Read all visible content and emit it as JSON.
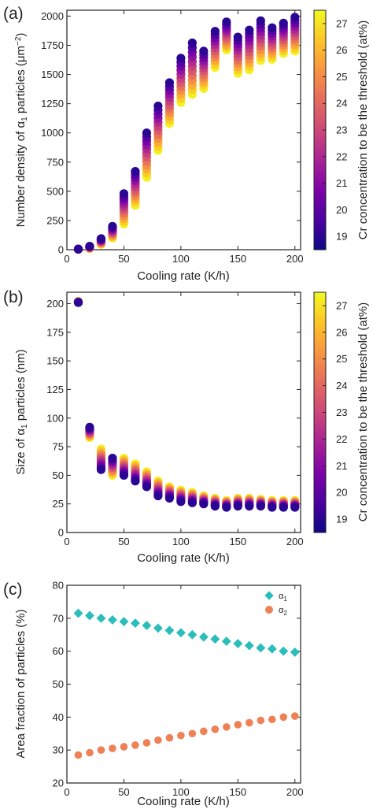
{
  "panels": [
    {
      "id": "a",
      "label": "(a)"
    },
    {
      "id": "b",
      "label": "(b)"
    },
    {
      "id": "c",
      "label": "(c)"
    }
  ],
  "colorbar": {
    "label": "Cr concentration to be the threshold (at%)",
    "ticks": [
      19,
      20,
      21,
      22,
      23,
      24,
      25,
      26,
      27
    ],
    "range": [
      18.5,
      27.5
    ],
    "colormap": "plasma"
  },
  "chart_data": [
    {
      "type": "scatter",
      "panel": "a",
      "xlabel": "Cooling rate (K/h)",
      "ylabel": "Number density of α1 particles (μm−2)",
      "xlim": [
        0,
        205
      ],
      "ylim": [
        0,
        2050
      ],
      "xticks": [
        0,
        50,
        100,
        150,
        200
      ],
      "yticks": [
        0,
        250,
        500,
        750,
        1000,
        1250,
        1500,
        1750,
        2000
      ],
      "x": [
        10,
        20,
        30,
        40,
        50,
        60,
        70,
        80,
        90,
        100,
        110,
        120,
        130,
        140,
        150,
        160,
        170,
        180,
        190,
        200
      ],
      "color_series": {
        "low_cr": 18.5,
        "high_cr": 27.5
      },
      "values_at_low_cr": [
        5,
        30,
        95,
        200,
        480,
        670,
        1000,
        1230,
        1430,
        1640,
        1770,
        1700,
        1870,
        1950,
        1820,
        1880,
        1960,
        1900,
        1940,
        1990
      ],
      "values_at_high_cr": [
        5,
        10,
        45,
        100,
        220,
        380,
        620,
        850,
        1080,
        1260,
        1330,
        1380,
        1560,
        1710,
        1510,
        1540,
        1620,
        1630,
        1680,
        1700
      ],
      "num_levels": 12,
      "grid": false
    },
    {
      "type": "scatter",
      "panel": "b",
      "xlabel": "Cooling rate (K/h)",
      "ylabel": "Size of α1 particles (nm)",
      "xlim": [
        0,
        205
      ],
      "ylim": [
        0,
        210
      ],
      "xticks": [
        0,
        50,
        100,
        150,
        200
      ],
      "yticks": [
        0,
        25,
        50,
        75,
        100,
        125,
        150,
        175,
        200
      ],
      "x": [
        10,
        20,
        30,
        40,
        50,
        60,
        70,
        80,
        90,
        100,
        110,
        120,
        130,
        140,
        150,
        160,
        170,
        180,
        190,
        200
      ],
      "color_series": {
        "low_cr": 18.5,
        "high_cr": 27.5
      },
      "values_at_low_cr": [
        201,
        92,
        55,
        65,
        50,
        45,
        40,
        32,
        30,
        27,
        26,
        25,
        23,
        22,
        23,
        23,
        23,
        22,
        22,
        22
      ],
      "values_at_high_cr": [
        202,
        83,
        73,
        50,
        65,
        60,
        53,
        45,
        40,
        37,
        35,
        32,
        30,
        28,
        30,
        30,
        29,
        28,
        28,
        28
      ],
      "num_levels": 10,
      "grid": false
    },
    {
      "type": "scatter",
      "panel": "c",
      "xlabel": "Cooling rate (K/h)",
      "ylabel": "Area fraction of particles (%)",
      "xlim": [
        0,
        205
      ],
      "ylim": [
        20,
        80
      ],
      "xticks": [
        0,
        50,
        100,
        150,
        200
      ],
      "yticks": [
        20,
        30,
        40,
        50,
        60,
        70,
        80
      ],
      "legend_position": "top-right",
      "x": [
        10,
        20,
        30,
        40,
        50,
        60,
        70,
        80,
        90,
        100,
        110,
        120,
        130,
        140,
        150,
        160,
        170,
        180,
        190,
        200
      ],
      "series": [
        {
          "name": "α1",
          "marker": "diamond",
          "color": "#2bbdbb",
          "values": [
            71.5,
            70.8,
            70.0,
            69.5,
            69.0,
            68.5,
            67.8,
            67.0,
            66.3,
            65.6,
            65.0,
            64.3,
            63.7,
            63.0,
            62.3,
            61.7,
            61.0,
            60.7,
            60.0,
            59.7
          ]
        },
        {
          "name": "α2",
          "marker": "circle",
          "color": "#ee8155",
          "values": [
            28.5,
            29.2,
            30.0,
            30.5,
            31.0,
            31.5,
            32.2,
            33.0,
            33.7,
            34.4,
            35.0,
            35.7,
            36.3,
            37.0,
            37.7,
            38.3,
            39.0,
            39.3,
            40.0,
            40.3
          ]
        }
      ],
      "grid": false
    }
  ]
}
